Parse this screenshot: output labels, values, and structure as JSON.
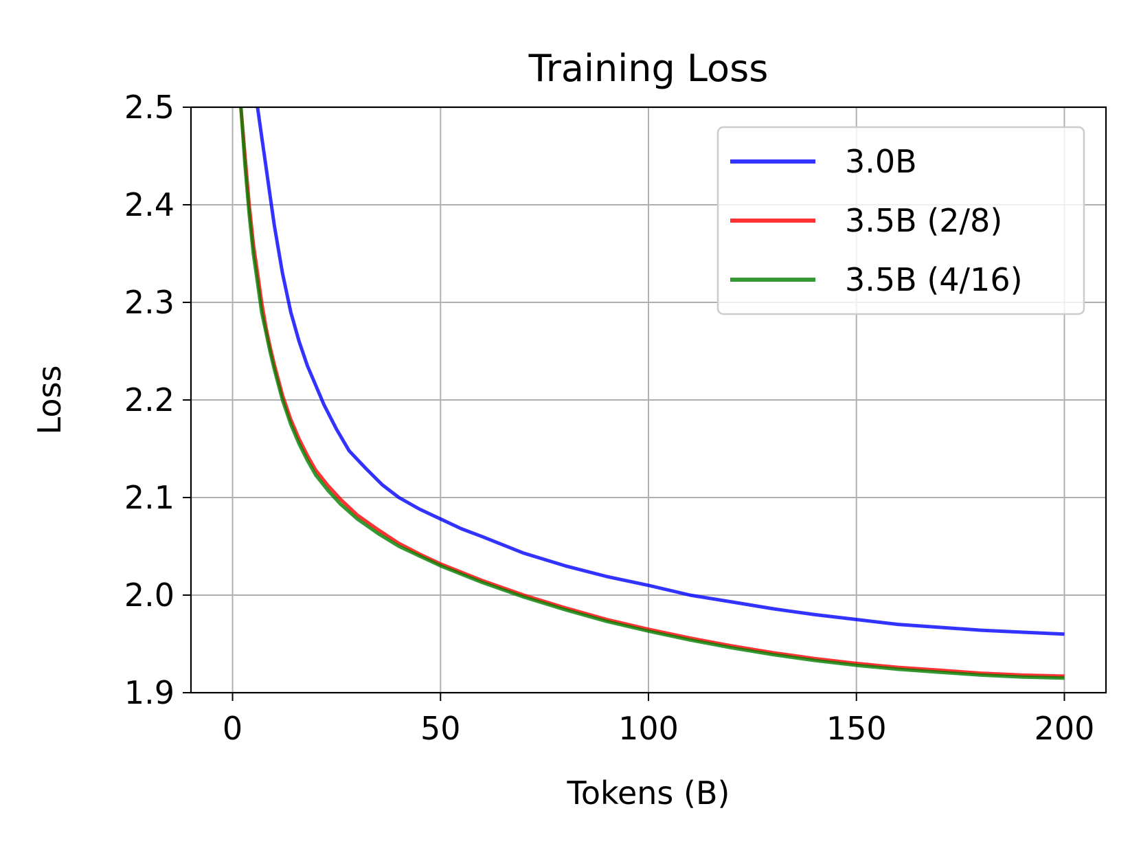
{
  "chart_data": {
    "type": "line",
    "title": "Training Loss",
    "xlabel": "Tokens (B)",
    "ylabel": "Loss",
    "xlim": [
      -10,
      210
    ],
    "ylim": [
      1.9,
      2.5
    ],
    "xticks": [
      0,
      50,
      100,
      150,
      200
    ],
    "xtick_labels": [
      "0",
      "50",
      "100",
      "150",
      "200"
    ],
    "yticks": [
      1.9,
      2.0,
      2.1,
      2.2,
      2.3,
      2.4,
      2.5
    ],
    "ytick_labels": [
      "1.9",
      "2.0",
      "2.1",
      "2.2",
      "2.3",
      "2.4",
      "2.5"
    ],
    "grid": true,
    "legend_position": "top-right",
    "series": [
      {
        "name": "3.0B",
        "color": "#0000ff",
        "x": [
          6,
          7,
          8,
          9,
          10,
          11,
          12,
          14,
          16,
          18,
          20,
          22,
          25,
          28,
          32,
          36,
          40,
          45,
          50,
          55,
          60,
          70,
          80,
          90,
          100,
          110,
          120,
          130,
          140,
          150,
          160,
          170,
          180,
          190,
          200
        ],
        "values": [
          2.5,
          2.47,
          2.44,
          2.41,
          2.38,
          2.355,
          2.33,
          2.29,
          2.26,
          2.235,
          2.215,
          2.195,
          2.17,
          2.148,
          2.13,
          2.113,
          2.1,
          2.088,
          2.078,
          2.068,
          2.06,
          2.043,
          2.03,
          2.019,
          2.01,
          2.0,
          1.993,
          1.986,
          1.98,
          1.975,
          1.97,
          1.967,
          1.964,
          1.962,
          1.96
        ]
      },
      {
        "name": "3.5B (2/8)",
        "color": "#ff0000",
        "x": [
          2,
          3,
          4,
          5,
          6,
          7,
          8,
          9,
          10,
          12,
          14,
          16,
          18,
          20,
          23,
          26,
          30,
          35,
          40,
          45,
          50,
          60,
          70,
          80,
          90,
          100,
          110,
          120,
          130,
          140,
          150,
          160,
          170,
          180,
          190,
          200
        ],
        "values": [
          2.5,
          2.45,
          2.4,
          2.36,
          2.33,
          2.3,
          2.275,
          2.255,
          2.237,
          2.205,
          2.18,
          2.16,
          2.143,
          2.128,
          2.112,
          2.098,
          2.082,
          2.067,
          2.053,
          2.042,
          2.032,
          2.015,
          2.0,
          1.987,
          1.975,
          1.965,
          1.956,
          1.948,
          1.941,
          1.935,
          1.93,
          1.926,
          1.923,
          1.92,
          1.918,
          1.917
        ]
      },
      {
        "name": "3.5B (4/16)",
        "color": "#008000",
        "x": [
          2,
          3,
          4,
          5,
          6,
          7,
          8,
          9,
          10,
          12,
          14,
          16,
          18,
          20,
          23,
          26,
          30,
          35,
          40,
          45,
          50,
          60,
          70,
          80,
          90,
          100,
          110,
          120,
          130,
          140,
          150,
          160,
          170,
          180,
          190,
          200
        ],
        "values": [
          2.5,
          2.44,
          2.39,
          2.35,
          2.32,
          2.29,
          2.27,
          2.25,
          2.232,
          2.2,
          2.175,
          2.155,
          2.138,
          2.123,
          2.107,
          2.093,
          2.078,
          2.063,
          2.05,
          2.04,
          2.03,
          2.013,
          1.998,
          1.985,
          1.973,
          1.963,
          1.954,
          1.946,
          1.939,
          1.933,
          1.928,
          1.924,
          1.921,
          1.918,
          1.916,
          1.915
        ]
      }
    ]
  }
}
